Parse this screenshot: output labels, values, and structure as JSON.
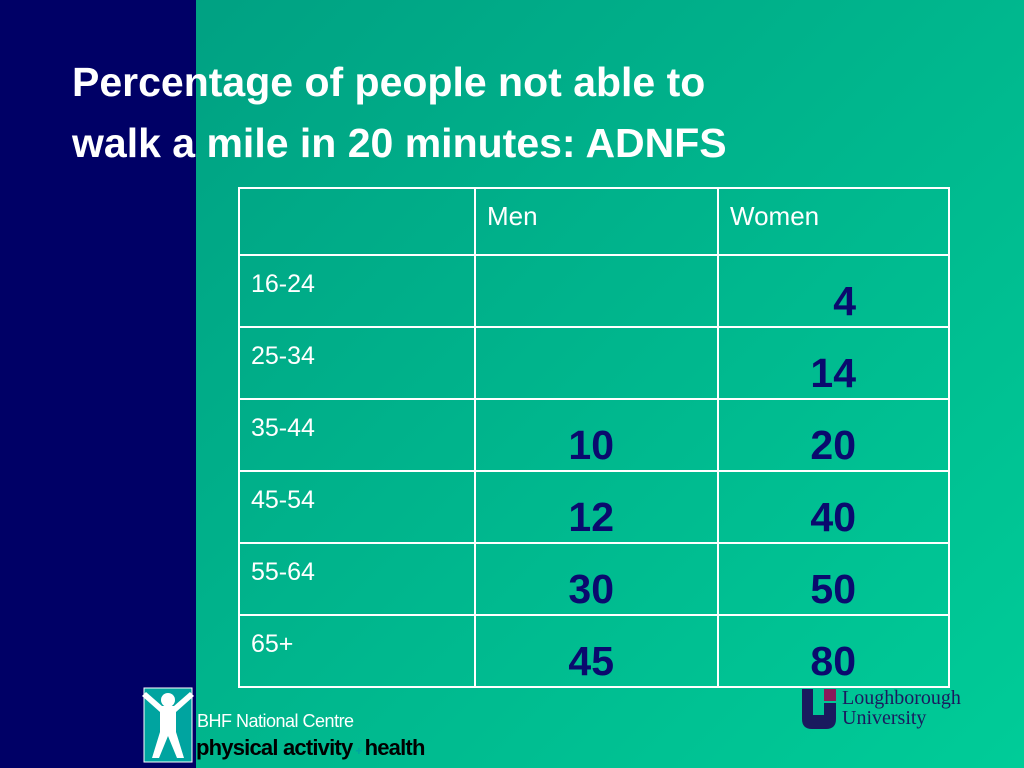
{
  "title": {
    "line1": "Percentage of people not able to",
    "line2": "walk a mile in 20 minutes: ADNFS"
  },
  "table": {
    "header": [
      null,
      "Men",
      "Women"
    ],
    "rows": [
      [
        "16-24",
        null,
        4
      ],
      [
        "25-34",
        null,
        14
      ],
      [
        "35-44",
        10,
        20
      ],
      [
        "45-54",
        12,
        40
      ],
      [
        "55-64",
        30,
        50
      ],
      [
        "65+",
        45,
        80
      ]
    ]
  },
  "logos": {
    "bhf": {
      "line1": "BHF National Centre",
      "line2a": "physical activity",
      "plus": "+",
      "line2b": "health"
    },
    "loughborough": {
      "line1": "Loughborough",
      "line2": "University"
    }
  }
}
